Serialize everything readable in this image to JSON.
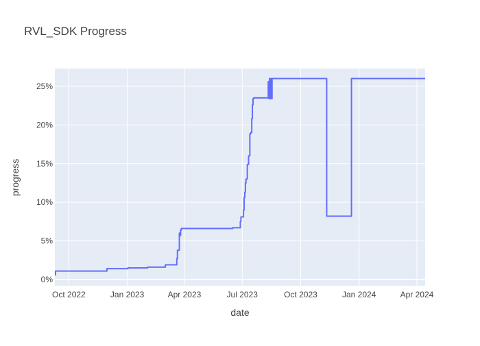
{
  "chart_data": {
    "type": "line",
    "title": "RVL_SDK Progress",
    "xlabel": "date",
    "ylabel": "progress",
    "x_tick_labels": [
      "Oct 2022",
      "Jan 2023",
      "Apr 2023",
      "Jul 2023",
      "Oct 2023",
      "Jan 2024",
      "Apr 2024"
    ],
    "x_tick_dates": [
      "2022-10-01",
      "2023-01-01",
      "2023-04-01",
      "2023-07-01",
      "2023-10-01",
      "2024-01-01",
      "2024-04-01"
    ],
    "y_tick_labels": [
      "0%",
      "5%",
      "10%",
      "15%",
      "20%",
      "25%"
    ],
    "y_tick_values": [
      0,
      5,
      10,
      15,
      20,
      25
    ],
    "xlim": [
      "2022-09-09",
      "2024-04-14"
    ],
    "ylim": [
      -0.8,
      27.3
    ],
    "grid": true,
    "line_shape": "step",
    "colors": {
      "line": "#636efa",
      "plot_bg": "#e5ecf6",
      "grid": "#ffffff",
      "text": "#444444"
    },
    "series": [
      {
        "x": [
          "2022-09-09",
          "2022-09-10",
          "2022-11-29",
          "2022-11-30",
          "2023-01-01",
          "2023-01-02",
          "2023-02-01",
          "2023-02-02",
          "2023-03-01",
          "2023-03-02",
          "2023-03-19",
          "2023-03-20",
          "2023-03-21",
          "2023-03-22",
          "2023-03-24",
          "2023-03-25",
          "2023-03-26",
          "2023-03-27",
          "2023-03-28",
          "2023-03-29",
          "2023-04-18",
          "2023-04-19",
          "2023-06-15",
          "2023-06-16",
          "2023-06-27",
          "2023-06-28",
          "2023-06-29",
          "2023-06-30",
          "2023-07-03",
          "2023-07-04",
          "2023-07-05",
          "2023-07-06",
          "2023-07-07",
          "2023-07-08",
          "2023-07-09",
          "2023-07-10",
          "2023-07-11",
          "2023-07-13",
          "2023-07-14",
          "2023-07-16",
          "2023-07-17",
          "2023-07-18",
          "2023-07-19",
          "2023-07-21",
          "2023-07-22",
          "2023-07-23",
          "2023-08-10",
          "2023-08-11",
          "2023-08-12",
          "2023-08-13",
          "2023-08-14",
          "2023-08-15",
          "2023-08-16",
          "2023-08-17",
          "2023-11-11",
          "2023-12-20",
          "2024-04-14"
        ],
        "y": [
          0.6,
          1.1,
          1.1,
          1.4,
          1.4,
          1.5,
          1.5,
          1.6,
          1.6,
          1.9,
          1.9,
          2.7,
          3.8,
          3.8,
          6.0,
          5.7,
          6.4,
          6.6,
          6.6,
          6.6,
          6.6,
          6.6,
          6.6,
          6.7,
          6.7,
          7.5,
          8.1,
          8.1,
          9.0,
          10.6,
          11.3,
          12.5,
          13.0,
          13.0,
          14.9,
          14.9,
          16.0,
          18.8,
          19.0,
          20.8,
          22.6,
          23.4,
          23.5,
          23.5,
          23.5,
          23.5,
          23.5,
          25.6,
          23.4,
          26.0,
          23.4,
          26.0,
          23.4,
          26.0,
          8.2,
          26.0,
          26.0
        ]
      }
    ]
  }
}
